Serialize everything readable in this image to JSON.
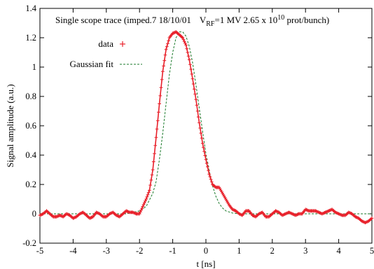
{
  "chart_data": {
    "type": "line",
    "title": {
      "main": "Single scope trace (imped.7 18/10/01",
      "v_sym": "V",
      "v_sub": "RF",
      "v_rest": "=1 MV  2.65 x 10",
      "exp": "10",
      "tail": "  prot/bunch)"
    },
    "xlabel": "t  [ns]",
    "ylabel": "Signal amplitude (a.u.)",
    "xlim": [
      -5,
      5
    ],
    "ylim": [
      -0.2,
      1.4
    ],
    "xticks": [
      -5,
      -4,
      -3,
      -2,
      -1,
      0,
      1,
      2,
      3,
      4,
      5
    ],
    "yticks": [
      -0.2,
      0,
      0.2,
      0.4,
      0.6,
      0.8,
      1,
      1.2,
      1.4
    ],
    "ytick_labels": [
      "-0.2",
      "0",
      "0.2",
      "0.4",
      "0.6",
      "0.8",
      "1",
      "1.2",
      "1.4"
    ],
    "grid": false,
    "legend_position": "top-left",
    "series": [
      {
        "name": "data",
        "style": "points",
        "marker": "plus",
        "color": "#e8202a",
        "x": [
          -5.0,
          -4.9,
          -4.8,
          -4.7,
          -4.6,
          -4.5,
          -4.4,
          -4.3,
          -4.2,
          -4.1,
          -4.0,
          -3.9,
          -3.8,
          -3.7,
          -3.6,
          -3.5,
          -3.4,
          -3.3,
          -3.2,
          -3.1,
          -3.0,
          -2.9,
          -2.8,
          -2.7,
          -2.6,
          -2.5,
          -2.4,
          -2.3,
          -2.2,
          -2.1,
          -2.0,
          -1.9,
          -1.8,
          -1.7,
          -1.6,
          -1.5,
          -1.4,
          -1.3,
          -1.2,
          -1.1,
          -1.0,
          -0.9,
          -0.8,
          -0.7,
          -0.6,
          -0.5,
          -0.4,
          -0.3,
          -0.2,
          -0.1,
          0.0,
          0.1,
          0.2,
          0.3,
          0.4,
          0.5,
          0.6,
          0.7,
          0.8,
          0.9,
          1.0,
          1.1,
          1.2,
          1.3,
          1.4,
          1.5,
          1.6,
          1.7,
          1.8,
          1.9,
          2.0,
          2.1,
          2.2,
          2.3,
          2.4,
          2.5,
          2.6,
          2.7,
          2.8,
          2.9,
          3.0,
          3.1,
          3.2,
          3.3,
          3.4,
          3.5,
          3.6,
          3.7,
          3.8,
          3.9,
          4.0,
          4.1,
          4.2,
          4.3,
          4.4,
          4.5,
          4.6,
          4.7,
          4.8,
          4.9,
          5.0
        ],
        "y": [
          -0.01,
          0.0,
          0.02,
          0.0,
          -0.02,
          -0.02,
          -0.01,
          -0.02,
          0.0,
          -0.01,
          -0.03,
          -0.02,
          0.0,
          0.01,
          -0.01,
          -0.03,
          -0.02,
          0.01,
          0.0,
          -0.02,
          -0.02,
          0.0,
          0.01,
          -0.01,
          -0.02,
          0.0,
          0.02,
          0.01,
          0.01,
          0.0,
          0.0,
          0.05,
          0.1,
          0.16,
          0.3,
          0.52,
          0.75,
          0.97,
          1.12,
          1.2,
          1.23,
          1.24,
          1.22,
          1.2,
          1.15,
          1.05,
          0.92,
          0.78,
          0.62,
          0.48,
          0.37,
          0.27,
          0.2,
          0.18,
          0.18,
          0.14,
          0.1,
          0.06,
          0.03,
          0.02,
          0.0,
          -0.01,
          0.02,
          0.02,
          -0.01,
          -0.02,
          0.0,
          0.01,
          -0.02,
          -0.02,
          0.0,
          0.02,
          0.01,
          -0.01,
          0.0,
          0.01,
          0.0,
          -0.01,
          0.0,
          0.0,
          0.03,
          0.02,
          0.02,
          0.02,
          0.01,
          0.0,
          0.01,
          0.02,
          0.03,
          0.01,
          0.0,
          -0.01,
          -0.01,
          0.01,
          0.0,
          -0.02,
          -0.03,
          -0.05,
          -0.06,
          -0.05,
          -0.03
        ]
      },
      {
        "name": "Gaussian fit",
        "style": "dashed",
        "color": "#1a7a2a",
        "x": [
          -5.0,
          -3.0,
          -2.4,
          -2.0,
          -1.8,
          -1.6,
          -1.5,
          -1.4,
          -1.3,
          -1.2,
          -1.1,
          -1.0,
          -0.9,
          -0.8,
          -0.7,
          -0.6,
          -0.5,
          -0.4,
          -0.3,
          -0.2,
          -0.1,
          0.0,
          0.1,
          0.2,
          0.3,
          0.4,
          0.5,
          0.6,
          0.8,
          1.0,
          1.4,
          2.0,
          5.0
        ],
        "y": [
          0.0,
          0.0,
          0.0,
          0.02,
          0.05,
          0.14,
          0.22,
          0.37,
          0.55,
          0.75,
          0.95,
          1.1,
          1.2,
          1.24,
          1.24,
          1.21,
          1.14,
          1.03,
          0.88,
          0.72,
          0.56,
          0.41,
          0.29,
          0.19,
          0.12,
          0.07,
          0.04,
          0.02,
          0.005,
          0.0,
          0.0,
          0.0,
          0.0
        ]
      }
    ]
  }
}
